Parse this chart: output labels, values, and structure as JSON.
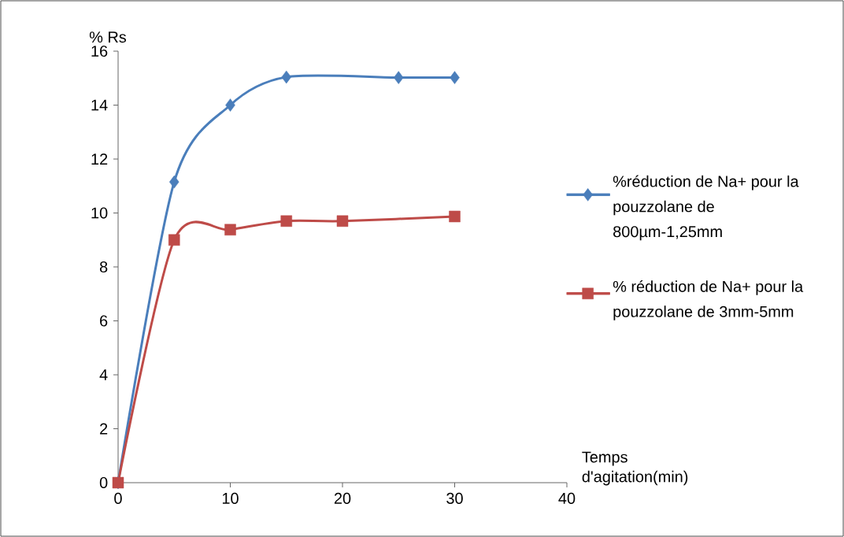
{
  "chart_data": {
    "type": "line",
    "xlabel": "Temps d'agitation(min)",
    "ylabel": "% Rs",
    "xlim": [
      0,
      40
    ],
    "ylim": [
      0,
      16
    ],
    "xticks": [
      0,
      10,
      20,
      30,
      40
    ],
    "yticks": [
      0,
      2,
      4,
      6,
      8,
      10,
      12,
      14,
      16
    ],
    "grid": false,
    "legend": "right",
    "line_style": "solid",
    "series": [
      {
        "name": "%réduction de Na+ pour la pouzzolane de 800µm-1,25mm",
        "color": "#4a7ebb",
        "marker": "diamond",
        "x": [
          0,
          5,
          10,
          15,
          25,
          30
        ],
        "values": [
          0,
          11.15,
          14.0,
          15.04,
          15.02,
          15.02
        ]
      },
      {
        "name": "% réduction de Na+ pour la pouzzolane de 3mm-5mm",
        "color": "#be4b48",
        "marker": "square",
        "x": [
          0,
          5,
          10,
          15,
          20,
          30
        ],
        "values": [
          0,
          9.0,
          9.38,
          9.7,
          9.7,
          9.87
        ]
      }
    ]
  }
}
